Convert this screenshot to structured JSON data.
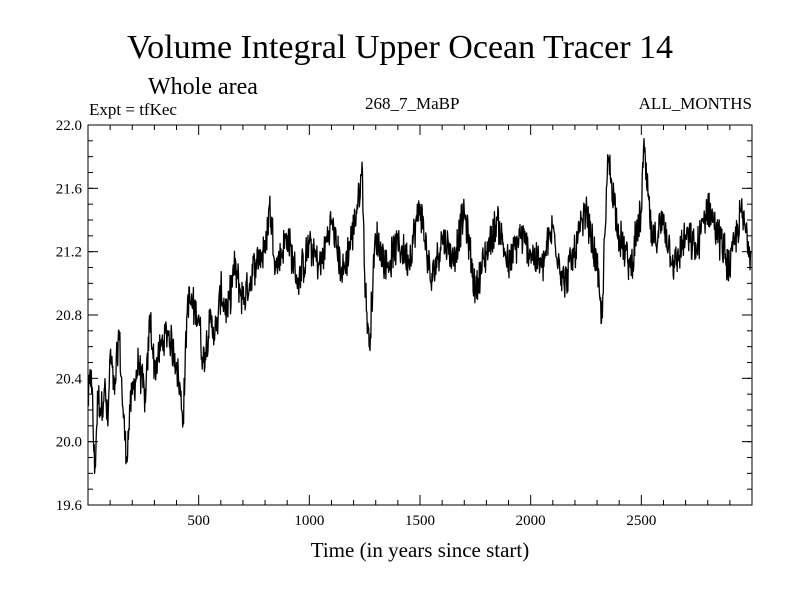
{
  "header": {
    "title": "Volume Integral Upper Ocean Tracer 14",
    "subtitle": "Whole area",
    "experiment": "Expt = tfKec",
    "run_id": "268_7_MaBP",
    "months": "ALL_MONTHS"
  },
  "chart_data": {
    "type": "line",
    "title": "Volume Integral Upper Ocean Tracer 14",
    "subtitle": "Whole area",
    "xlabel": "Time (in years since start)",
    "ylabel": "",
    "xlim": [
      0,
      3000
    ],
    "ylim": [
      19.6,
      22.0
    ],
    "x_ticks": [
      500,
      1000,
      1500,
      2000,
      2500
    ],
    "x_tick_labels": [
      "500",
      "1000",
      "1500",
      "2000",
      "2500"
    ],
    "y_ticks": [
      19.6,
      20.0,
      20.4,
      20.8,
      21.2,
      21.6,
      22.0
    ],
    "y_tick_labels": [
      "19.6",
      "20.0",
      "20.4",
      "20.8",
      "21.2",
      "21.6",
      "22.0"
    ],
    "grid": false,
    "legend": "none",
    "line_color": "#000000",
    "series": [
      {
        "x": [
          0,
          15,
          30,
          45,
          60,
          75,
          90,
          100,
          120,
          140,
          160,
          175,
          190,
          200,
          230,
          260,
          280,
          300,
          330,
          360,
          400,
          430,
          450,
          500,
          520,
          550,
          580,
          600,
          630,
          660,
          700,
          730,
          760,
          800,
          820,
          850,
          900,
          950,
          1000,
          1050,
          1100,
          1150,
          1200,
          1240,
          1250,
          1270,
          1300,
          1350,
          1400,
          1450,
          1500,
          1550,
          1600,
          1650,
          1700,
          1750,
          1800,
          1850,
          1900,
          1950,
          2000,
          2050,
          2100,
          2150,
          2200,
          2250,
          2300,
          2320,
          2350,
          2400,
          2450,
          2500,
          2510,
          2550,
          2600,
          2650,
          2700,
          2750,
          2800,
          2850,
          2900,
          2950,
          2995
        ],
        "y": [
          20.25,
          20.45,
          19.8,
          20.3,
          20.2,
          20.35,
          20.1,
          20.55,
          20.3,
          20.7,
          20.15,
          19.9,
          20.2,
          20.3,
          20.5,
          20.25,
          20.8,
          20.45,
          20.6,
          20.7,
          20.5,
          20.15,
          20.9,
          20.8,
          20.5,
          20.75,
          20.7,
          20.95,
          20.8,
          21.1,
          20.9,
          21.0,
          21.15,
          21.2,
          21.5,
          21.1,
          21.3,
          21.0,
          21.25,
          21.1,
          21.4,
          21.05,
          21.35,
          21.7,
          21.05,
          20.6,
          21.3,
          21.1,
          21.25,
          21.15,
          21.5,
          21.0,
          21.3,
          21.15,
          21.45,
          20.95,
          21.2,
          21.4,
          21.1,
          21.3,
          21.2,
          21.1,
          21.35,
          21.0,
          21.2,
          21.45,
          21.1,
          20.75,
          21.8,
          21.3,
          21.1,
          21.45,
          21.85,
          21.25,
          21.4,
          21.1,
          21.3,
          21.2,
          21.5,
          21.3,
          21.1,
          21.45,
          21.2
        ]
      }
    ]
  }
}
